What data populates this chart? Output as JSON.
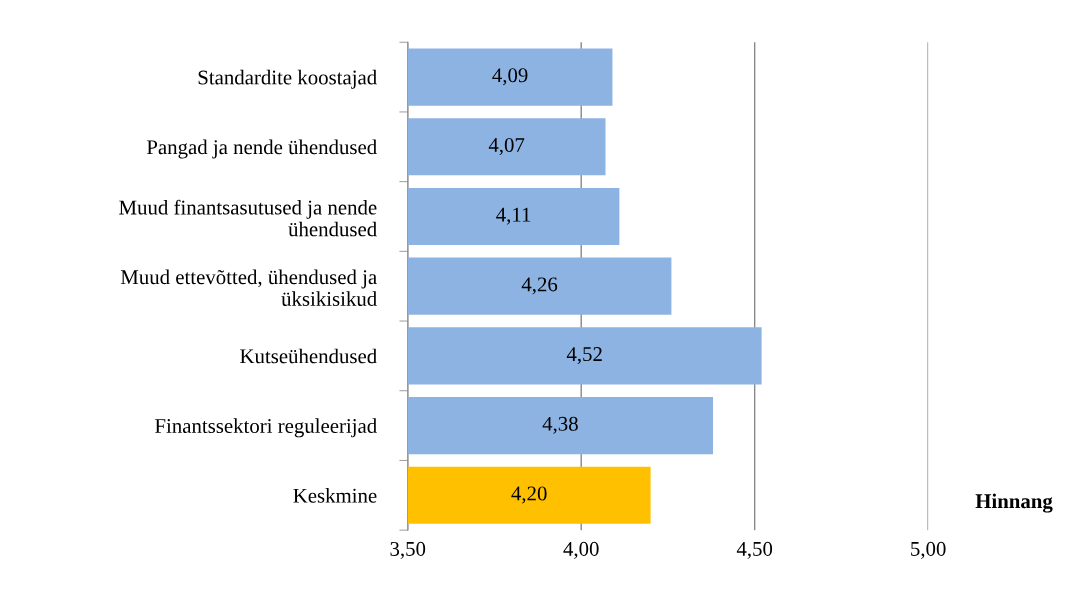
{
  "chart_data": {
    "type": "bar",
    "orientation": "horizontal",
    "categories": [
      "Standardite koostajad",
      "Pangad ja nende ühendused",
      "Muud finantsasutused ja nende\nühendused",
      "Muud ettevõtted, ühendused ja\nüksikisikud",
      "Kutseühendused",
      "Finantssektori reguleerijad",
      "Keskmine"
    ],
    "values": [
      4.09,
      4.07,
      4.11,
      4.26,
      4.52,
      4.38,
      4.2
    ],
    "colors": [
      "#8db3e2",
      "#8db3e2",
      "#8db3e2",
      "#8db3e2",
      "#8db3e2",
      "#8db3e2",
      "#ffc000"
    ],
    "value_labels": [
      "4,09",
      "4,07",
      "4,11",
      "4,26",
      "4,52",
      "4,38",
      "4,20"
    ],
    "xlabel": "Hinnang",
    "xlim": [
      3.5,
      5.0
    ],
    "xticks": [
      {
        "value": 3.5,
        "label": "3,50"
      },
      {
        "value": 4.0,
        "label": "4,00"
      },
      {
        "value": 4.5,
        "label": "4,50"
      },
      {
        "value": 5.0,
        "label": "5,00"
      }
    ],
    "grid": "x"
  }
}
